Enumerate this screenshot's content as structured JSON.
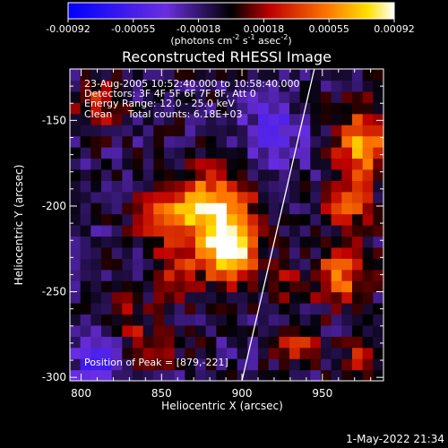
{
  "chart_data": {
    "type": "heatmap",
    "title": "Reconstructed RHESSI Image",
    "xlabel": "Heliocentric X (arcsec)",
    "ylabel": "Heliocentric Y (arcsec)",
    "xlim": [
      793,
      988
    ],
    "ylim": [
      -302,
      -120
    ],
    "x_ticks": [
      800,
      850,
      900,
      950
    ],
    "y_ticks": [
      -150,
      -200,
      -250,
      -300
    ],
    "colorbar": {
      "ticks": [
        "-0.00092",
        "-0.00055",
        "-0.00018",
        "0.00018",
        "0.00055",
        "0.00092"
      ],
      "units_label": "(photons cm",
      "units_parts": [
        "(photons cm",
        "-2",
        " s",
        "-1",
        " asec",
        "-2",
        ")"
      ],
      "range": [
        -0.00092,
        0.00092
      ]
    },
    "annotations": [
      "23-Aug-2005 10:52:40.000 to 10:58:40.000",
      "Detectors: 3F 4F 5F 6F 7F 8F, Att 0",
      "Energy Range: 12.0 - 25.0 keV",
      "Clean     Total counts: 6.18E+03",
      "Position of Peak = [879,-221]"
    ],
    "sources": [
      {
        "x": 883,
        "y": -204,
        "amp": 0.0009,
        "sx": 16,
        "sy": 17
      },
      {
        "x": 893,
        "y": -228,
        "amp": 0.00085,
        "sx": 11,
        "sy": 12
      },
      {
        "x": 852,
        "y": -205,
        "amp": 0.0005,
        "sx": 12,
        "sy": 12
      },
      {
        "x": 858,
        "y": -240,
        "amp": 0.00042,
        "sx": 10,
        "sy": 10
      },
      {
        "x": 828,
        "y": -268,
        "amp": 0.0003,
        "sx": 9,
        "sy": 10
      },
      {
        "x": 848,
        "y": -282,
        "amp": 0.00025,
        "sx": 12,
        "sy": 8
      },
      {
        "x": 975,
        "y": -165,
        "amp": 0.00075,
        "sx": 11,
        "sy": 16
      },
      {
        "x": 965,
        "y": -200,
        "amp": 0.00045,
        "sx": 10,
        "sy": 10
      },
      {
        "x": 962,
        "y": -240,
        "amp": 0.00062,
        "sx": 11,
        "sy": 12
      },
      {
        "x": 935,
        "y": -280,
        "amp": 0.0004,
        "sx": 9,
        "sy": 9
      },
      {
        "x": 975,
        "y": -290,
        "amp": 0.00045,
        "sx": 8,
        "sy": 8
      },
      {
        "x": 810,
        "y": -140,
        "amp": 0.0004,
        "sx": 10,
        "sy": 10
      },
      {
        "x": 930,
        "y": -245,
        "amp": 0.0003,
        "sx": 8,
        "sy": 8
      },
      {
        "x": 812,
        "y": -290,
        "amp": -0.0006,
        "sx": 9,
        "sy": 9
      },
      {
        "x": 920,
        "y": -160,
        "amp": -0.00035,
        "sx": 14,
        "sy": 14
      }
    ],
    "limb": [
      [
        900,
        -302
      ],
      [
        945,
        -120
      ]
    ],
    "grid": false
  },
  "timestamp": "1-May-2022 21:34"
}
